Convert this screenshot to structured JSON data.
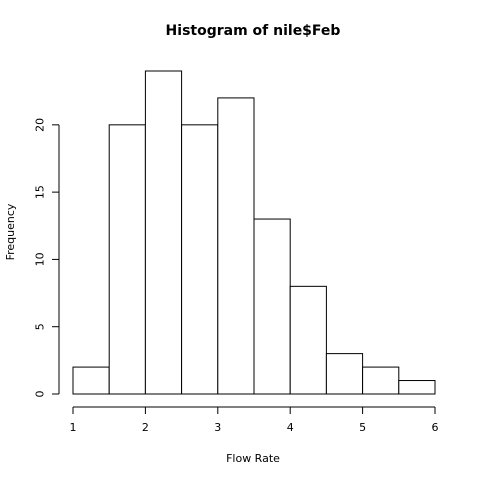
{
  "chart_data": {
    "type": "bar",
    "title": "Histogram of nile$Feb",
    "xlabel": "Flow Rate",
    "ylabel": "Frequency",
    "bins": [
      {
        "x0": 1.0,
        "x1": 1.5,
        "count": 2
      },
      {
        "x0": 1.5,
        "x1": 2.0,
        "count": 20
      },
      {
        "x0": 2.0,
        "x1": 2.5,
        "count": 24
      },
      {
        "x0": 2.5,
        "x1": 3.0,
        "count": 20
      },
      {
        "x0": 3.0,
        "x1": 3.5,
        "count": 22
      },
      {
        "x0": 3.5,
        "x1": 4.0,
        "count": 13
      },
      {
        "x0": 4.0,
        "x1": 4.5,
        "count": 8
      },
      {
        "x0": 4.5,
        "x1": 5.0,
        "count": 3
      },
      {
        "x0": 5.0,
        "x1": 5.5,
        "count": 2
      },
      {
        "x0": 5.5,
        "x1": 6.0,
        "count": 1
      }
    ],
    "xlim": [
      1,
      6
    ],
    "ylim": [
      0,
      24
    ],
    "xticks": [
      1,
      2,
      3,
      4,
      5,
      6
    ],
    "yticks": [
      0,
      5,
      10,
      15,
      20
    ],
    "grid": false,
    "bar_fill": "#ffffff",
    "bar_stroke": "#000000"
  }
}
